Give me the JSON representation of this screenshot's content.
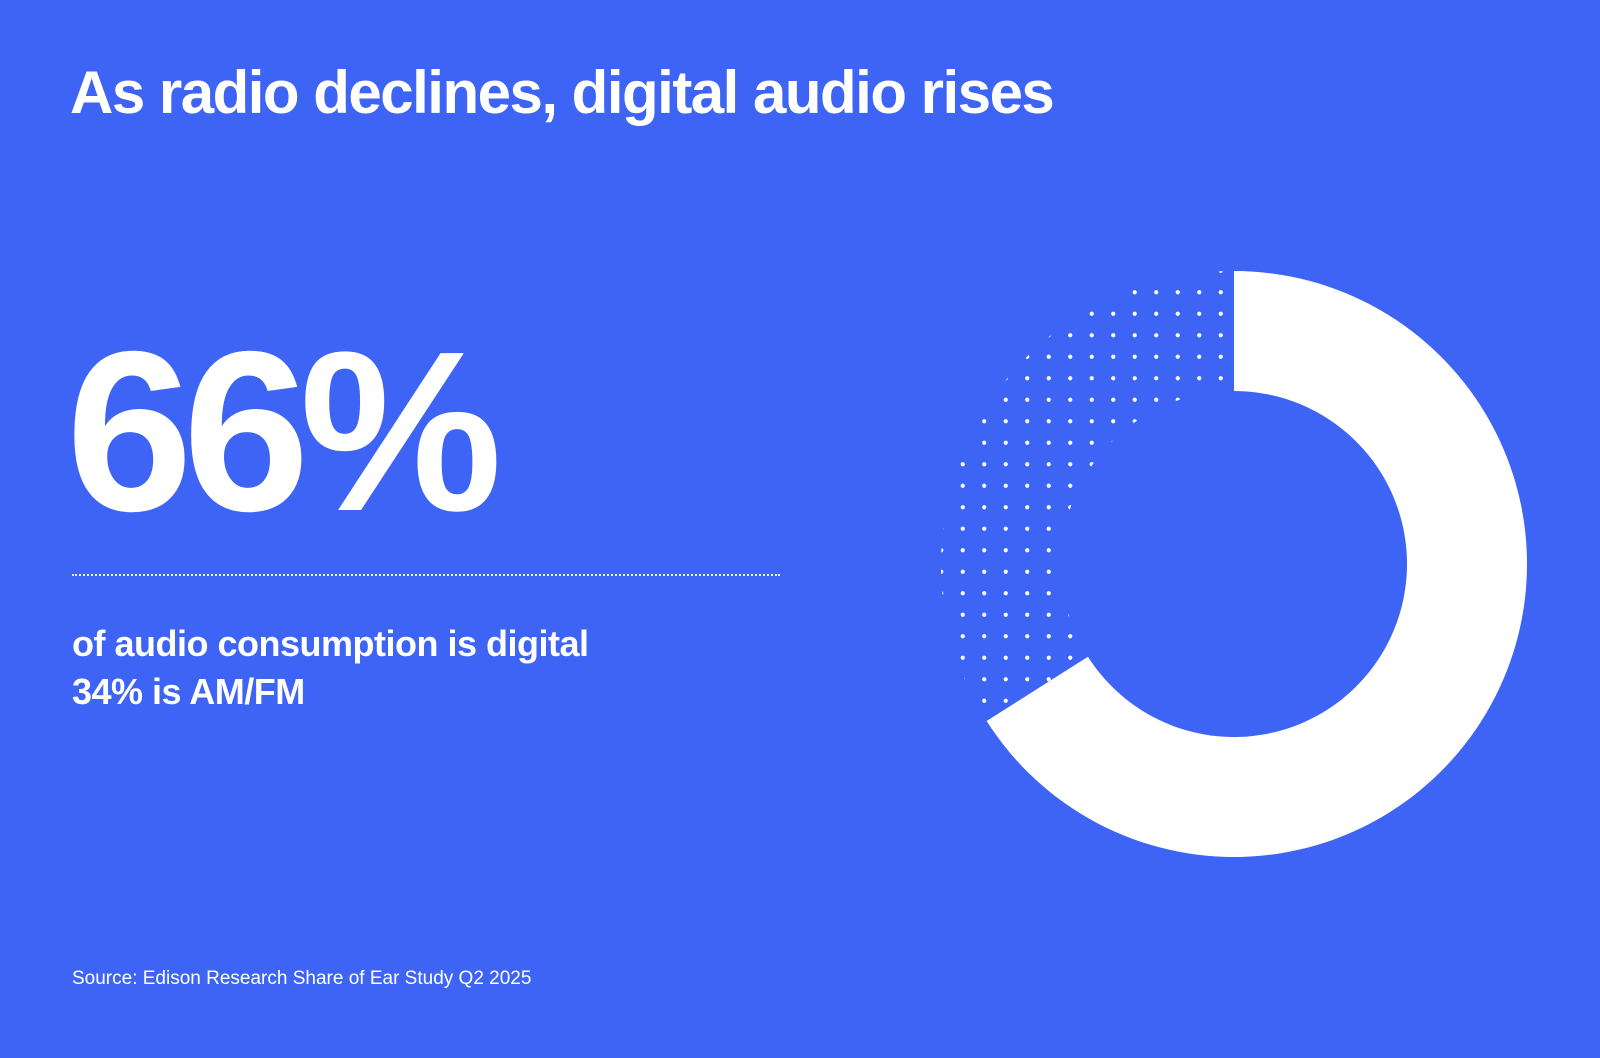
{
  "colors": {
    "background": "#3e64f5",
    "digital": "#ffffff",
    "am_fm_dots": "#ffffff"
  },
  "title": "As radio declines, digital audio rises",
  "headline_stat": "66%",
  "description": {
    "line1": "of audio consumption is digital",
    "line2": "34% is AM/FM"
  },
  "source": "Source: Edison Research Share of Ear Study Q2 2025",
  "chart_data": {
    "type": "pie",
    "style": "donut",
    "start": "top",
    "direction": "clockwise",
    "slices": [
      {
        "label": "digital",
        "value": 66,
        "fill": "solid"
      },
      {
        "label": "AM/FM",
        "value": 34,
        "fill": "dotted"
      }
    ]
  }
}
